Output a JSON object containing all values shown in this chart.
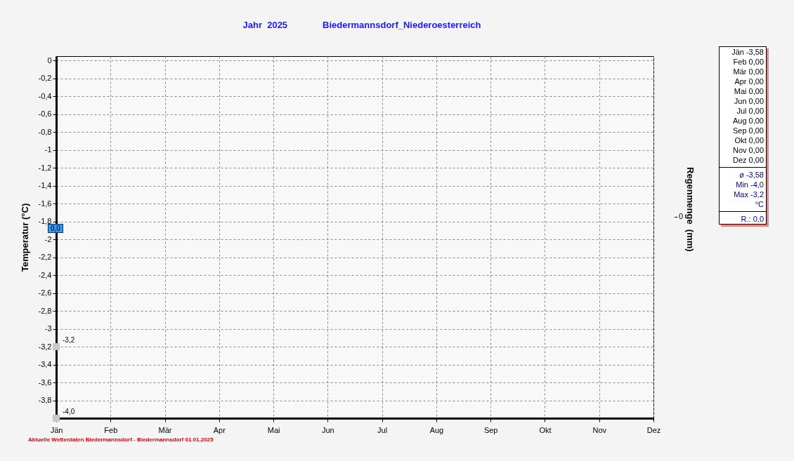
{
  "chart_data": {
    "type": "line",
    "title": "Jahr  2025",
    "subtitle": "Biedermannsdorf_Niederoesterreich",
    "ylabel": "Temperatur  (°C)",
    "y2label": "Regenmenge  (mm)",
    "categories": [
      "Jän",
      "Feb",
      "Mär",
      "Apr",
      "Mai",
      "Jun",
      "Jul",
      "Aug",
      "Sep",
      "Okt",
      "Nov",
      "Dez"
    ],
    "marker": "square",
    "series": [
      {
        "color": "#c8c8c8",
        "values": [
          -3.2,
          null,
          null,
          null,
          null,
          null,
          null,
          null,
          null,
          null,
          null,
          null
        ],
        "value_labels": [
          "-3,2",
          null,
          null,
          null,
          null,
          null,
          null,
          null,
          null,
          null,
          null,
          null
        ]
      },
      {
        "color": "#c8c8c8",
        "values": [
          -4.0,
          null,
          null,
          null,
          null,
          null,
          null,
          null,
          null,
          null,
          null,
          null
        ],
        "value_labels": [
          "-4,0",
          null,
          null,
          null,
          null,
          null,
          null,
          null,
          null,
          null,
          null,
          null
        ]
      }
    ],
    "ylim": [
      -4,
      0.05
    ],
    "yticks": [
      {
        "value": 0,
        "label": "0"
      },
      {
        "value": -0.2,
        "label": "-0,2"
      },
      {
        "value": -0.4,
        "label": "-0,4"
      },
      {
        "value": -0.6,
        "label": "-0,6"
      },
      {
        "value": -0.8,
        "label": "-0,8"
      },
      {
        "value": -1,
        "label": "-1"
      },
      {
        "value": -1.2,
        "label": "-1,2"
      },
      {
        "value": -1.4,
        "label": "-1,4"
      },
      {
        "value": -1.6,
        "label": "-1,6"
      },
      {
        "value": -1.8,
        "label": "-1,8"
      },
      {
        "value": -2,
        "label": "-2"
      },
      {
        "value": -2.2,
        "label": "-2,2"
      },
      {
        "value": -2.4,
        "label": "-2,4"
      },
      {
        "value": -2.6,
        "label": "-2,6"
      },
      {
        "value": -2.8,
        "label": "-2,8"
      },
      {
        "value": -3,
        "label": "-3"
      },
      {
        "value": -3.2,
        "label": "-3,2"
      },
      {
        "value": -3.4,
        "label": "-3,4"
      },
      {
        "value": -3.6,
        "label": "-3,6"
      },
      {
        "value": -3.8,
        "label": "-3,8"
      }
    ],
    "grid": true,
    "annotations": [
      "Jän -3,58",
      "Feb 0,00",
      "Mär 0,00",
      "Apr 0,00",
      "Mai 0,00",
      "Jun 0,00",
      "Jul 0,00",
      "Aug 0,00",
      "Sep 0,00",
      "Okt 0,00",
      "Nov 0,00",
      "Dez 0,00",
      "ø -3,58",
      "Min -4,0",
      "Max -3,2",
      "°C",
      "R.: 0,0",
      "0,0",
      "0",
      "Aktuelle Wetterdaten Biedermannsdorf - Biedermannsdorf 01.01.2025"
    ]
  }
}
